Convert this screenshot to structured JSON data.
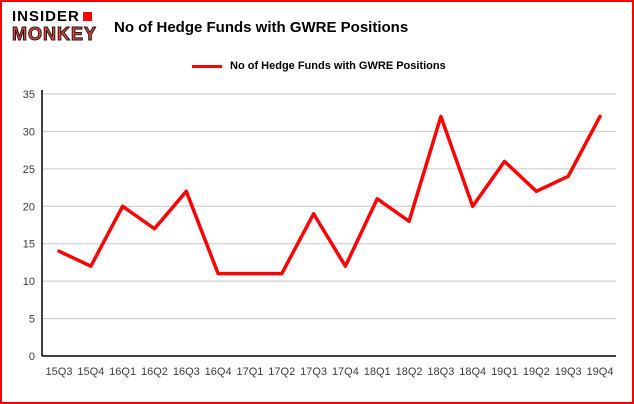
{
  "header": {
    "logo": {
      "line1": "INSIDER",
      "line2": "MONKEY"
    },
    "title": "No of Hedge Funds with GWRE Positions"
  },
  "colors": {
    "accent_red": "#fb0303",
    "grid_gray": "#c6c6c6",
    "axis_black": "#000000"
  },
  "chart_data": {
    "type": "line",
    "title": "No of Hedge Funds with GWRE Positions",
    "categories": [
      "15Q3",
      "15Q4",
      "16Q1",
      "16Q2",
      "16Q3",
      "16Q4",
      "17Q1",
      "17Q2",
      "17Q3",
      "17Q4",
      "18Q1",
      "18Q2",
      "18Q3",
      "18Q4",
      "19Q1",
      "19Q2",
      "19Q3",
      "19Q4"
    ],
    "series": [
      {
        "name": "No of Hedge Funds with GWRE Positions",
        "values": [
          14,
          12,
          20,
          17,
          22,
          11,
          11,
          11,
          19,
          12,
          21,
          18,
          32,
          20,
          26,
          22,
          24,
          32
        ]
      }
    ],
    "xlabel": "",
    "ylabel": "",
    "ylim": [
      0,
      35
    ],
    "yticks": [
      0,
      5,
      10,
      15,
      20,
      25,
      30,
      35
    ],
    "grid": true,
    "legend_position": "top",
    "line_color": "#fb0303",
    "grid_color": "#c6c6c6"
  }
}
